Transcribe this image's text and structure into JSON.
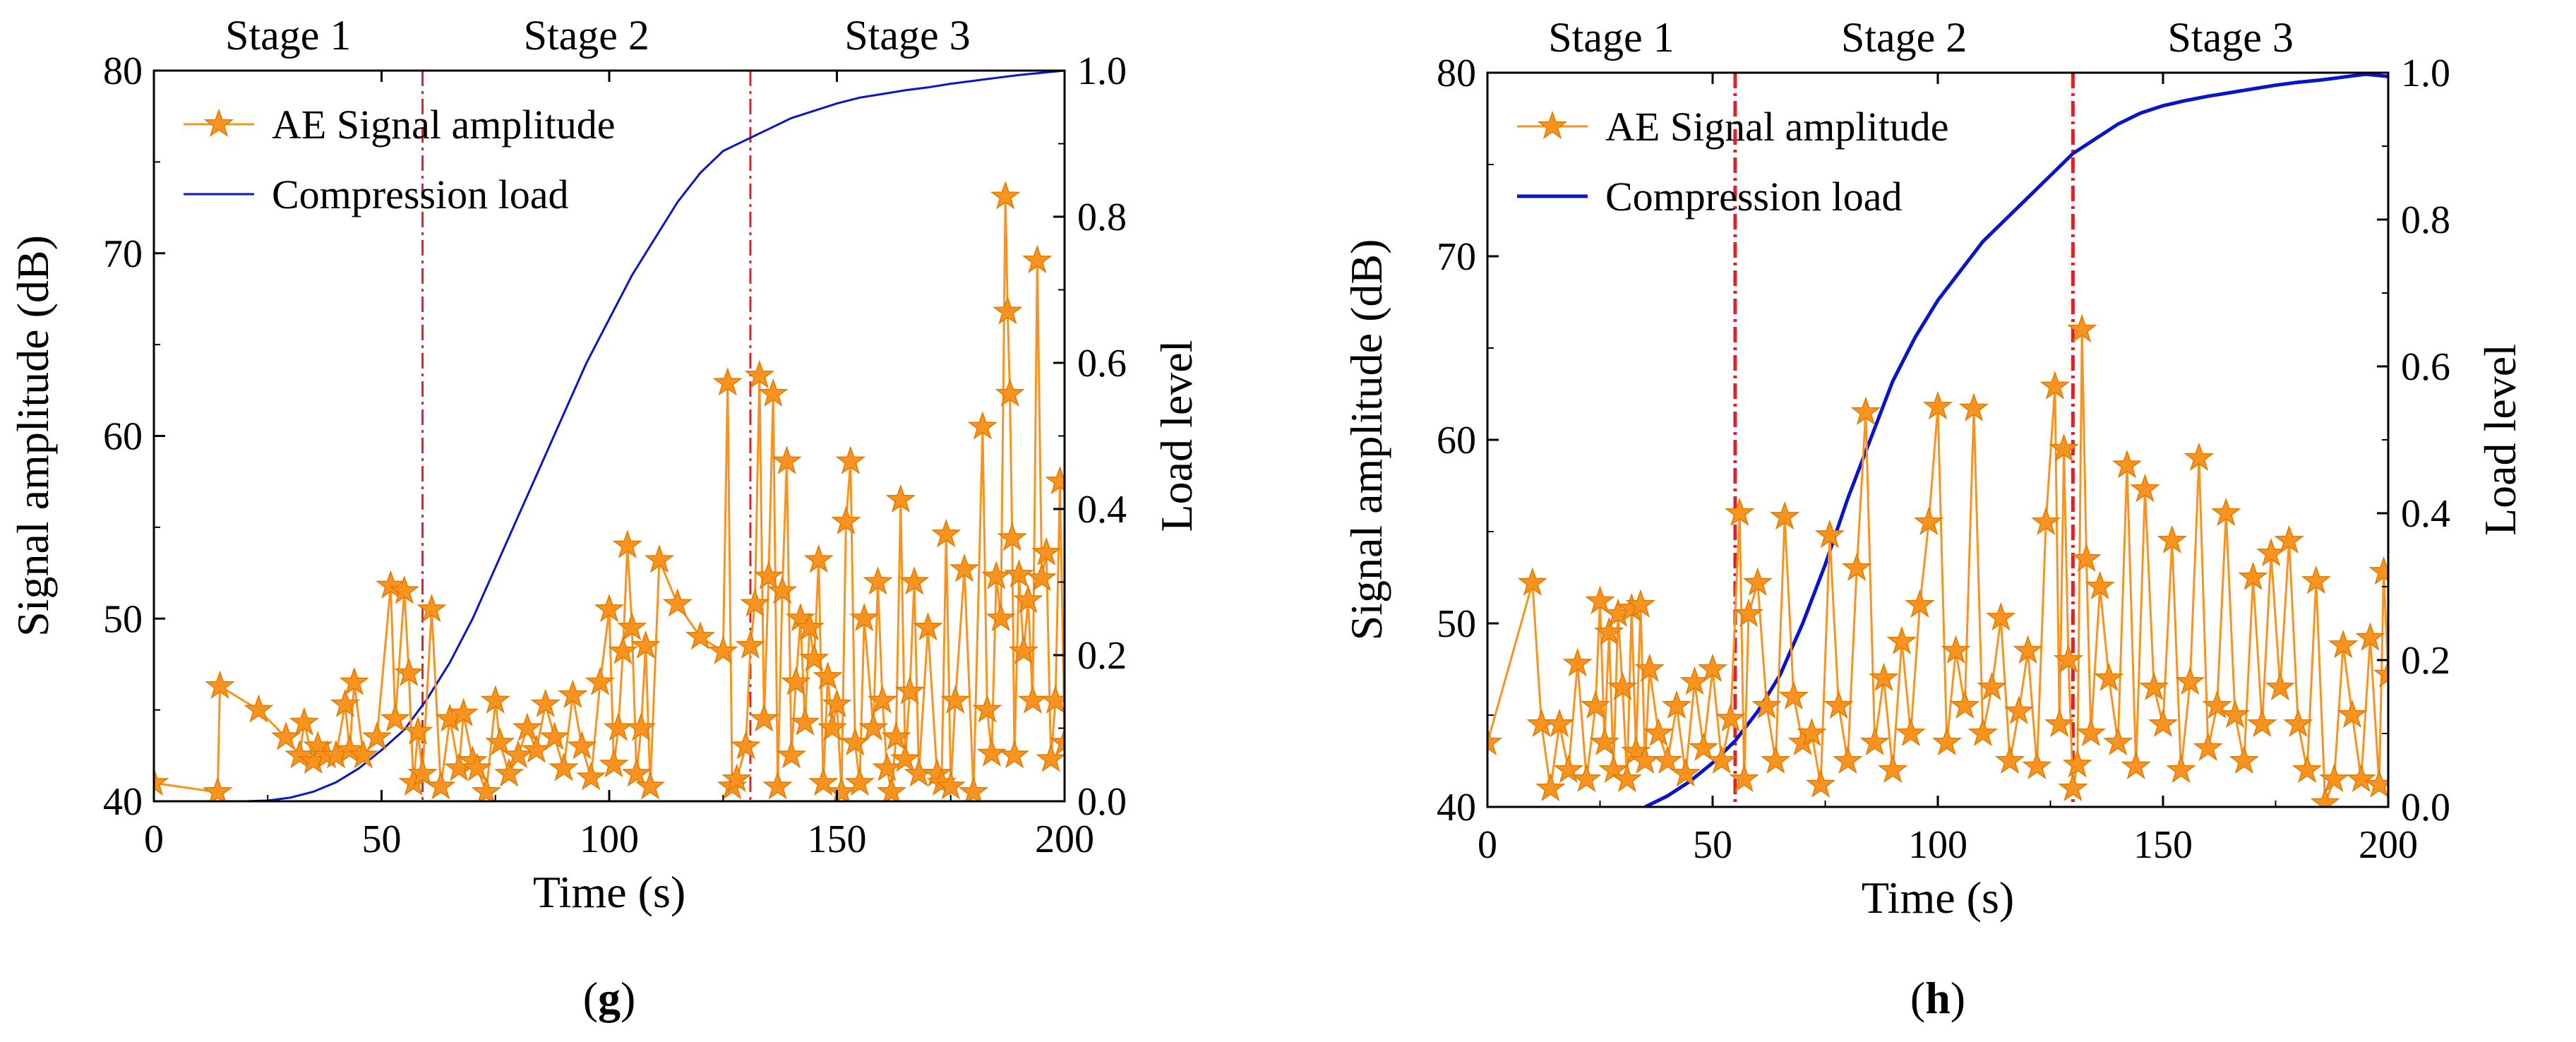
{
  "chart_data": [
    {
      "type": "line",
      "panel_label": "g",
      "caption_open": "(",
      "caption_close": ")",
      "xlabel": "Time (s)",
      "ylabel_left": "Signal amplitude (dB)",
      "ylabel_right": "Load level",
      "xlim": [
        0,
        200
      ],
      "ylim_left": [
        40,
        80
      ],
      "ylim_right": [
        0.0,
        1.0
      ],
      "x_ticks": [
        0,
        50,
        100,
        150,
        200
      ],
      "y_left_ticks": [
        40,
        50,
        60,
        70,
        80
      ],
      "y_right_ticks": [
        "0.0",
        "0.2",
        "0.4",
        "0.6",
        "0.8",
        "1.0"
      ],
      "stage_boundaries": [
        59,
        131
      ],
      "stage_labels": [
        "Stage 1",
        "Stage 2",
        "Stage 3"
      ],
      "legend": [
        "AE Signal amplitude",
        "Compression load"
      ],
      "series": [
        {
          "name": "AE Signal amplitude",
          "axis": "left",
          "x": [
            0,
            14,
            14.5,
            23,
            29,
            32,
            33,
            35,
            36,
            38,
            40,
            42,
            43,
            44,
            46,
            49,
            52,
            53,
            55,
            56,
            57,
            58,
            59,
            61,
            63,
            65,
            67,
            68,
            70,
            71,
            73,
            75,
            76,
            78,
            80,
            82,
            84,
            86,
            88,
            90,
            92,
            94,
            96,
            98,
            100,
            101,
            102,
            103,
            104,
            105,
            106,
            107,
            108,
            109,
            111,
            115,
            120,
            125,
            126,
            127,
            128,
            130,
            131,
            132,
            133,
            134,
            135,
            136,
            137,
            138,
            139,
            140,
            141,
            142,
            143,
            144,
            145,
            146,
            147,
            148,
            149,
            150,
            151,
            152,
            153,
            154,
            155,
            156,
            158,
            159,
            160,
            161,
            162,
            163,
            164,
            165,
            166,
            167,
            168,
            170,
            172,
            173,
            174,
            175,
            176,
            178,
            180,
            182,
            183,
            184,
            185,
            186,
            187,
            187.5,
            188,
            188.5,
            189,
            190,
            191,
            192,
            193,
            194,
            195,
            196,
            197,
            198,
            199,
            200
          ],
          "y": [
            41,
            40.5,
            46.3,
            45,
            43.5,
            42.5,
            44.3,
            42.2,
            43,
            42.5,
            42.5,
            45.3,
            42.8,
            46.5,
            42.5,
            43.5,
            51.8,
            44.5,
            51.5,
            47,
            41,
            43.8,
            41.5,
            50.5,
            40.8,
            44.5,
            41.8,
            44.8,
            42.2,
            41.8,
            40.5,
            45.5,
            43.2,
            41.5,
            42.5,
            44,
            42.8,
            45.3,
            43.5,
            41.8,
            45.8,
            43,
            41.3,
            46.5,
            50.5,
            42,
            44,
            48.2,
            54,
            49.5,
            41.5,
            44,
            48.5,
            40.8,
            53.2,
            50.8,
            49,
            48.2,
            62.9,
            40.8,
            41.2,
            43,
            48.5,
            50.8,
            63.3,
            44.5,
            52.3,
            62.3,
            40.8,
            51.5,
            58.6,
            42.5,
            46.5,
            50,
            44.3,
            49.5,
            47.8,
            53.2,
            41,
            46.8,
            44,
            45.3,
            40.5,
            55.3,
            58.6,
            43.2,
            41,
            50,
            44,
            52,
            45.5,
            41.8,
            40.5,
            43.5,
            56.5,
            42.3,
            46,
            52,
            41.5,
            49.5,
            41.5,
            41,
            54.6,
            40.8,
            45.5,
            52.7,
            40.5,
            60.5,
            45,
            42.6,
            52.3,
            50,
            73.1,
            66.8,
            62.3,
            54.4,
            42.5,
            52.4,
            48.2,
            51,
            45.5,
            69.6,
            52.2,
            53.6,
            42.3,
            45.5,
            57.5,
            43.2
          ]
        },
        {
          "name": "Compression load",
          "axis": "right",
          "x": [
            0,
            10,
            20,
            25,
            30,
            35,
            40,
            45,
            50,
            55,
            60,
            65,
            70,
            75,
            80,
            85,
            90,
            95,
            100,
            105,
            110,
            115,
            120,
            125,
            130,
            135,
            140,
            145,
            150,
            155,
            160,
            165,
            170,
            175,
            180,
            185,
            190,
            195,
            200
          ],
          "y": [
            0.0,
            0.0,
            0.0,
            0.001,
            0.005,
            0.013,
            0.026,
            0.045,
            0.07,
            0.098,
            0.14,
            0.19,
            0.25,
            0.32,
            0.39,
            0.46,
            0.53,
            0.6,
            0.66,
            0.72,
            0.77,
            0.82,
            0.86,
            0.89,
            0.905,
            0.92,
            0.935,
            0.945,
            0.955,
            0.963,
            0.968,
            0.973,
            0.977,
            0.982,
            0.986,
            0.99,
            0.994,
            0.997,
            1.0
          ]
        }
      ]
    },
    {
      "type": "line",
      "panel_label": "h",
      "caption_open": "(",
      "caption_close": ")",
      "xlabel": "Time (s)",
      "ylabel_left": "Signal amplitude (dB)",
      "ylabel_right": "Load level",
      "xlim": [
        0,
        200
      ],
      "ylim_left": [
        40,
        80
      ],
      "ylim_right": [
        0.0,
        1.0
      ],
      "x_ticks": [
        0,
        50,
        100,
        150,
        200
      ],
      "y_left_ticks": [
        40,
        50,
        60,
        70,
        80
      ],
      "y_right_ticks": [
        "0.0",
        "0.2",
        "0.4",
        "0.6",
        "0.8",
        "1.0"
      ],
      "stage_boundaries": [
        55,
        130
      ],
      "stage_labels": [
        "Stage 1",
        "Stage 2",
        "Stage 3"
      ],
      "legend": [
        "AE Signal amplitude",
        "Compression load"
      ],
      "series": [
        {
          "name": "AE Signal amplitude",
          "axis": "left",
          "x": [
            0,
            10,
            12,
            14,
            16,
            18,
            20,
            22,
            24,
            25,
            26,
            27,
            28,
            29,
            30,
            31,
            32,
            33,
            34,
            35,
            36,
            38,
            40,
            42,
            44,
            46,
            48,
            50,
            52,
            54,
            56,
            57,
            58,
            60,
            62,
            64,
            66,
            68,
            70,
            72,
            74,
            76,
            78,
            80,
            82,
            84,
            86,
            88,
            90,
            92,
            94,
            96,
            98,
            100,
            102,
            104,
            106,
            108,
            110,
            112,
            114,
            116,
            118,
            120,
            122,
            124,
            126,
            127,
            128,
            129,
            130,
            131,
            132,
            133,
            134,
            136,
            138,
            140,
            142,
            144,
            146,
            148,
            150,
            152,
            154,
            156,
            158,
            160,
            162,
            164,
            166,
            168,
            170,
            172,
            174,
            176,
            178,
            180,
            182,
            184,
            186,
            188,
            190,
            192,
            194,
            196,
            198,
            199,
            200
          ],
          "y": [
            43.5,
            52.2,
            44.5,
            41,
            44.5,
            42,
            47.8,
            41.5,
            45.5,
            51.2,
            43.5,
            49.5,
            42,
            50.5,
            46.5,
            41.5,
            50.8,
            43,
            51,
            42.5,
            47.5,
            44,
            42.5,
            45.5,
            41.8,
            46.8,
            43.2,
            47.5,
            42.5,
            44.8,
            56,
            41.5,
            50.5,
            52.2,
            45.5,
            42.5,
            55.8,
            46,
            43.5,
            44,
            41.2,
            54.8,
            45.5,
            42.5,
            53,
            61.5,
            43.5,
            47,
            42,
            49,
            44,
            51,
            55.5,
            61.8,
            43.5,
            48.5,
            45.5,
            61.7,
            44,
            46.5,
            50.3,
            42.5,
            45.2,
            48.5,
            42.2,
            55.5,
            62.9,
            44.5,
            59.5,
            48,
            41,
            42.3,
            66,
            53.5,
            44,
            52,
            47,
            43.5,
            58.6,
            42.2,
            57.3,
            46.5,
            44.5,
            54.5,
            42,
            46.8,
            59,
            43.2,
            45.5,
            56,
            45,
            42.5,
            52.5,
            44.5,
            53.8,
            46.5,
            54.5,
            44.5,
            42,
            52.3,
            40.2,
            41.5,
            48.8,
            45,
            41.5,
            49.2,
            41.2,
            52.8,
            47.2
          ]
        },
        {
          "name": "Compression load",
          "axis": "right",
          "x": [
            35,
            40,
            45,
            50,
            55,
            60,
            65,
            70,
            75,
            80,
            85,
            90,
            95,
            100,
            105,
            110,
            115,
            120,
            125,
            130,
            135,
            140,
            145,
            150,
            155,
            160,
            165,
            170,
            175,
            180,
            185,
            190,
            195,
            200
          ],
          "y": [
            0.0,
            0.015,
            0.035,
            0.06,
            0.09,
            0.13,
            0.18,
            0.25,
            0.33,
            0.42,
            0.5,
            0.58,
            0.64,
            0.69,
            0.73,
            0.77,
            0.8,
            0.83,
            0.86,
            0.89,
            0.91,
            0.93,
            0.945,
            0.955,
            0.962,
            0.968,
            0.973,
            0.978,
            0.983,
            0.987,
            0.99,
            0.994,
            0.998,
            0.995
          ]
        }
      ]
    }
  ],
  "colors": {
    "ae_signal": "#F7931E",
    "ae_marker_stroke": "#E07B00",
    "compression_load": "#0A14C8",
    "stage_line": "#E0202A"
  }
}
